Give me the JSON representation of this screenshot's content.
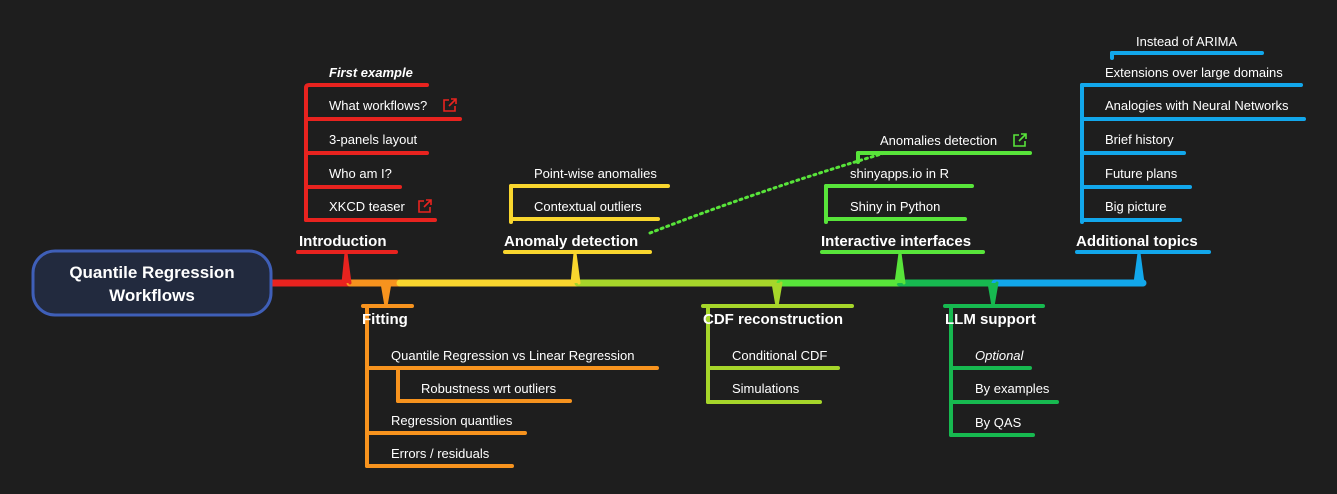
{
  "root": {
    "line1": "Quantile Regression",
    "line2": "Workflows"
  },
  "colors": {
    "introduction": "#e8231f",
    "fitting": "#f7931e",
    "anomaly": "#f9d62e",
    "cdf": "#a6d62a",
    "interactive": "#58e43a",
    "llm": "#17b950",
    "additional": "#12a7eb",
    "root_border": "#3f5fb8",
    "root_fill": "#222a3e",
    "relation": "#58e43a"
  },
  "branches": {
    "introduction": {
      "label": "Introduction",
      "items": [
        "First example",
        "What workflows?",
        "3-panels layout",
        "Who am I?",
        "XKCD teaser"
      ]
    },
    "fitting": {
      "label": "Fitting",
      "items": [
        "Quantile Regression vs Linear Regression",
        "Robustness wrt outliers",
        "Regression quantlies",
        "Errors / residuals"
      ]
    },
    "anomaly": {
      "label": "Anomaly detection",
      "items": [
        "Point-wise anomalies",
        "Contextual outliers"
      ]
    },
    "cdf": {
      "label": "CDF reconstruction",
      "items": [
        "Conditional CDF",
        "Simulations"
      ]
    },
    "interactive": {
      "label": "Interactive interfaces",
      "items": [
        "Anomalies detection",
        "shinyapps.io in R",
        "Shiny in Python"
      ]
    },
    "llm": {
      "label": "LLM support",
      "items": [
        "Optional",
        "By examples",
        "By QAS"
      ]
    },
    "additional": {
      "label": "Additional topics",
      "items": [
        "Instead of ARIMA",
        "Extensions over large domains",
        "Analogies with Neural Networks",
        "Brief history",
        "Future plans",
        "Big picture"
      ]
    }
  },
  "icons": {
    "link": "external-link-icon"
  }
}
